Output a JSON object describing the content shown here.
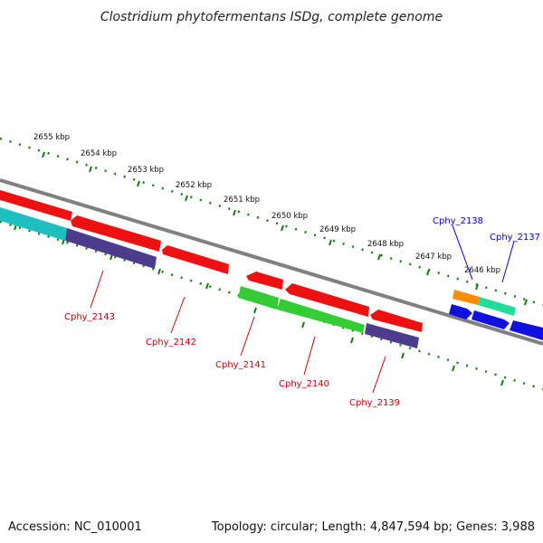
{
  "title": "Clostridium phytofermentans ISDg, complete genome",
  "footer": {
    "accession": "Accession: NC_010001",
    "summary": "Topology: circular; Length: 4,847,594 bp; Genes: 3,988"
  },
  "colors": {
    "backbone": "#808080",
    "ruler": "#1a7a1a",
    "forward_label": "#0000cc",
    "reverse_label": "#cc0000"
  },
  "ruler_labels": [
    "2655 kbp",
    "2654 kbp",
    "2653 kbp",
    "2652 kbp",
    "2651 kbp",
    "2650 kbp",
    "2649 kbp",
    "2648 kbp",
    "2647 kbp",
    "2646 kbp"
  ],
  "gene_labels": {
    "cphy_2138": "Cphy_2138",
    "cphy_2137": "Cphy_2137",
    "cphy_2143": "Cphy_2143",
    "cphy_2142": "Cphy_2142",
    "cphy_2141": "Cphy_2141",
    "cphy_2140": "Cphy_2140",
    "cphy_2139": "Cphy_2139"
  }
}
